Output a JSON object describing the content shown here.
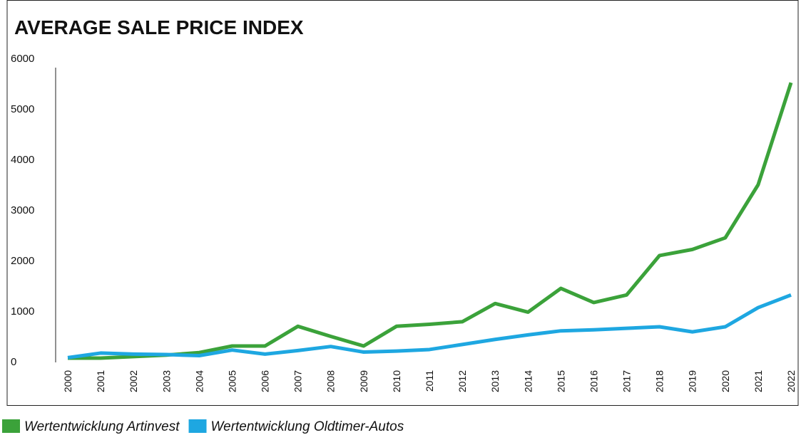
{
  "chart_data": {
    "type": "line",
    "title": "AVERAGE SALE PRICE INDEX",
    "categories": [
      "2000",
      "2001",
      "2002",
      "2003",
      "2004",
      "2005",
      "2006",
      "2007",
      "2008",
      "2009",
      "2010",
      "2011",
      "2012",
      "2013",
      "2014",
      "2015",
      "2016",
      "2017",
      "2018",
      "2019",
      "2020",
      "2021",
      "2022"
    ],
    "series": [
      {
        "name": "Wertentwicklung Artinvest",
        "color": "#3ba23a",
        "values": [
          70,
          70,
          100,
          130,
          180,
          310,
          310,
          700,
          500,
          310,
          700,
          740,
          790,
          1150,
          980,
          1450,
          1170,
          1320,
          2100,
          2220,
          2450,
          3500,
          5520
        ]
      },
      {
        "name": "Wertentwicklung Oldtimer-Autos",
        "color": "#1ea7e1",
        "values": [
          80,
          170,
          150,
          140,
          120,
          230,
          150,
          220,
          300,
          190,
          210,
          240,
          340,
          440,
          530,
          610,
          630,
          660,
          690,
          590,
          690,
          1070,
          1320
        ]
      }
    ],
    "ylim": [
      0,
      6000
    ],
    "yticks": [
      0,
      1000,
      2000,
      3000,
      4000,
      5000,
      6000
    ],
    "grid": false
  }
}
